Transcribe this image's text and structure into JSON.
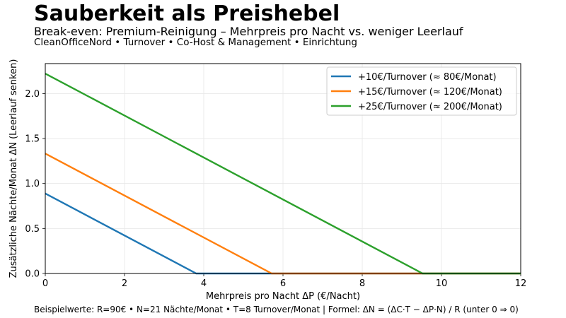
{
  "header": {
    "title": "Sauberkeit als Preishebel",
    "subtitle": "Break-even: Premium-Reinigung – Mehrpreis pro Nacht vs. weniger Leerlauf",
    "tagline": "CleanOfficeNord • Turnover • Co-Host & Management • Einrichtung"
  },
  "footer": "Beispielwerte: R=90€ • N=21 Nächte/Monat • T=8 Turnover/Monat   |   Formel: ΔN = (ΔC·T − ΔP·N) / R  (unter 0 ⇒ 0)",
  "chart_data": {
    "type": "line",
    "xlabel": "Mehrpreis pro Nacht ΔP (€/Nacht)",
    "ylabel": "Zusätzliche Nächte/Monat ΔN (Leerlauf senken)",
    "xlim": [
      0,
      12
    ],
    "ylim": [
      0,
      2.333
    ],
    "xticks": [
      0,
      2,
      4,
      6,
      8,
      10,
      12
    ],
    "yticks": [
      0.0,
      0.5,
      1.0,
      1.5,
      2.0
    ],
    "grid": true,
    "legend_position": "top-right",
    "series": [
      {
        "name": "+10€/Turnover (≈ 80€/Monat)",
        "color": "#1f77b4",
        "x": [
          0,
          3.81,
          12
        ],
        "y": [
          0.889,
          0,
          0
        ]
      },
      {
        "name": "+15€/Turnover (≈ 120€/Monat)",
        "color": "#ff7f0e",
        "x": [
          0,
          5.714,
          12
        ],
        "y": [
          1.333,
          0,
          0
        ]
      },
      {
        "name": "+25€/Turnover (≈ 200€/Monat)",
        "color": "#2ca02c",
        "x": [
          0,
          9.524,
          12
        ],
        "y": [
          2.222,
          0,
          0
        ]
      }
    ]
  }
}
